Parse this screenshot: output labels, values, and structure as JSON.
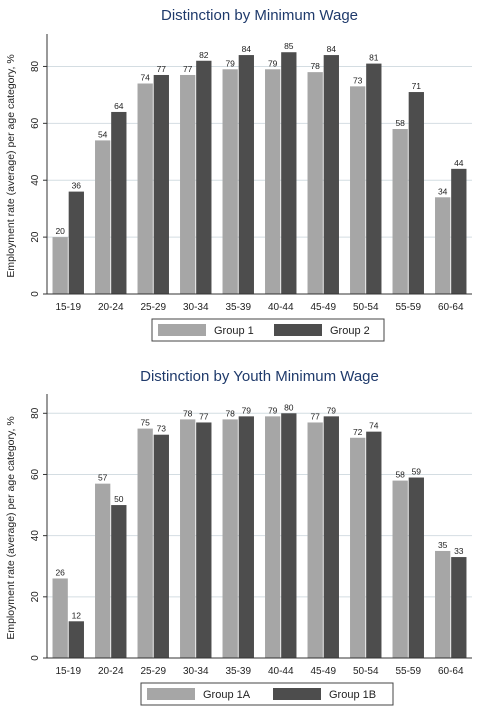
{
  "chart_data": [
    {
      "type": "bar",
      "title": "Distinction by Minimum Wage",
      "ylabel": "Employment rate (average) per age category, %",
      "xlabel": "",
      "ylim": [
        0,
        90
      ],
      "yticks": [
        0,
        20,
        40,
        60,
        80
      ],
      "categories": [
        "15-19",
        "20-24",
        "25-29",
        "30-34",
        "35-39",
        "40-44",
        "45-49",
        "50-54",
        "55-59",
        "60-64"
      ],
      "series": [
        {
          "name": "Group 1",
          "color": "#a6a6a6",
          "values": [
            20,
            54,
            74,
            77,
            79,
            79,
            78,
            73,
            58,
            34
          ]
        },
        {
          "name": "Group 2",
          "color": "#4d4d4d",
          "values": [
            36,
            64,
            77,
            82,
            84,
            85,
            84,
            81,
            71,
            44
          ]
        }
      ],
      "legend": "bottom",
      "grid": true
    },
    {
      "type": "bar",
      "title": "Distinction by Youth Minimum Wage",
      "ylabel": "Employment rate (average) per age category, %",
      "xlabel": "",
      "ylim": [
        0,
        85
      ],
      "yticks": [
        0,
        20,
        40,
        60,
        80
      ],
      "categories": [
        "15-19",
        "20-24",
        "25-29",
        "30-34",
        "35-39",
        "40-44",
        "45-49",
        "50-54",
        "55-59",
        "60-64"
      ],
      "series": [
        {
          "name": "Group 1A",
          "color": "#a6a6a6",
          "values": [
            26,
            57,
            75,
            78,
            78,
            79,
            77,
            72,
            58,
            35
          ]
        },
        {
          "name": "Group 1B",
          "color": "#4d4d4d",
          "values": [
            12,
            50,
            73,
            77,
            79,
            80,
            79,
            74,
            59,
            33
          ]
        }
      ],
      "legend": "bottom",
      "grid": true
    }
  ]
}
